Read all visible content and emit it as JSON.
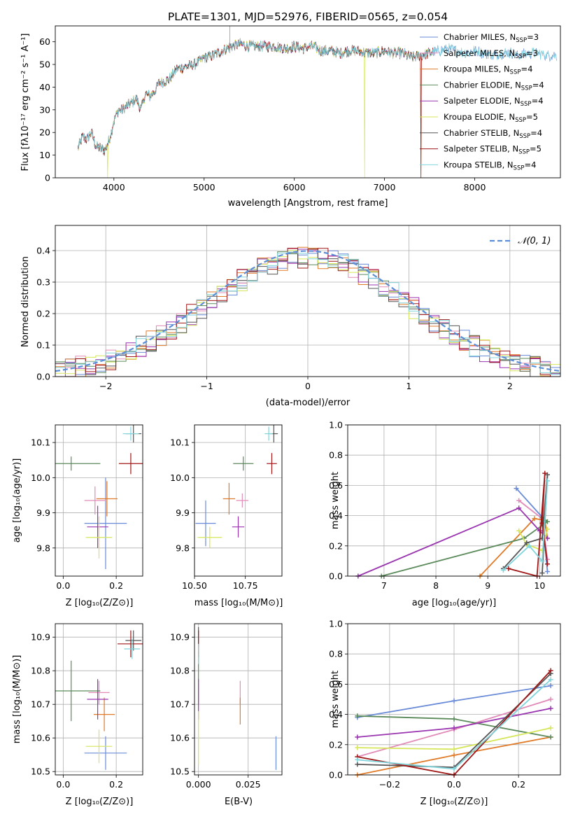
{
  "figure": {
    "title": "PLATE=1301, MJD=52976, FIBERID=0565, z=0.054"
  },
  "models": [
    {
      "name": "Chabrier MILES",
      "nssp": "3",
      "color": "#6a8bd8"
    },
    {
      "name": "Salpeter MILES",
      "nssp": "3",
      "color": "#e28bb8"
    },
    {
      "name": "Kroupa MILES",
      "nssp": "4",
      "color": "#e07b2a"
    },
    {
      "name": "Chabrier ELODIE",
      "nssp": "4",
      "color": "#5b8a5b"
    },
    {
      "name": "Salpeter ELODIE",
      "nssp": "4",
      "color": "#9a35b0"
    },
    {
      "name": "Kroupa ELODIE",
      "nssp": "5",
      "color": "#d6e65a"
    },
    {
      "name": "Chabrier STELIB",
      "nssp": "4",
      "color": "#555555"
    },
    {
      "name": "Salpeter STELIB",
      "nssp": "5",
      "color": "#a01818"
    },
    {
      "name": "Kroupa STELIB",
      "nssp": "4",
      "color": "#80d4dc"
    }
  ],
  "chart_data": [
    {
      "id": "spectrum",
      "type": "line",
      "xlabel": "wavelength [Angstrom, rest frame]",
      "ylabel": "Flux [fλ10⁻¹⁷ erg cm⁻² s⁻¹ A⁻¹]",
      "xlim": [
        3350,
        8950
      ],
      "ylim": [
        0,
        67
      ],
      "xticks": [
        4000,
        5000,
        6000,
        7000,
        8000
      ],
      "yticks": [
        0,
        10,
        20,
        30,
        40,
        50,
        60
      ],
      "grid": false,
      "legend": "right",
      "nssp_label": "N",
      "nssp_sub": "SSP",
      "continuum": {
        "x": [
          3600,
          3650,
          3700,
          3750,
          3800,
          3850,
          3900,
          3950,
          4000,
          4050,
          4100,
          4150,
          4200,
          4250,
          4300,
          4350,
          4400,
          4450,
          4500,
          4600,
          4700,
          4800,
          4900,
          5000,
          5100,
          5200,
          5300,
          5400,
          5500,
          5600,
          5700,
          5800,
          5900,
          6000,
          6100,
          6200,
          6300,
          6400,
          6500,
          6600,
          6700,
          6800,
          6900,
          7000,
          7100,
          7200,
          7300,
          7400,
          7500,
          7600,
          7700,
          7800,
          7900,
          8000,
          8100,
          8200,
          8300,
          8400,
          8500,
          8600,
          8700,
          8800,
          8900
        ],
        "y": [
          13,
          18,
          17,
          20,
          14,
          13,
          12,
          17,
          25,
          30,
          30,
          32,
          33,
          35,
          30,
          37,
          36,
          38,
          42,
          43,
          48,
          49,
          50,
          53,
          54,
          56,
          58,
          59,
          58,
          58,
          58,
          58,
          57,
          58,
          57,
          58,
          56,
          56,
          55,
          56,
          56,
          55,
          55,
          56,
          55,
          55,
          53,
          54,
          55,
          56,
          57,
          56,
          55,
          56,
          55,
          54,
          55,
          55,
          54,
          55,
          55,
          54,
          54
        ]
      }
    },
    {
      "id": "residuals",
      "type": "line",
      "xlabel": "(data-model)/error",
      "ylabel": "Normed distribution",
      "xlim": [
        -2.5,
        2.5
      ],
      "ylim": [
        0,
        0.48
      ],
      "xticks": [
        -2,
        -1,
        0,
        1,
        2
      ],
      "yticks": [
        0.0,
        0.1,
        0.2,
        0.3,
        0.4
      ],
      "grid": true,
      "legend": "top-right",
      "reference_label": "𝒩(0, 1)",
      "bin_width": 0.1
    },
    {
      "id": "age-vs-Z",
      "type": "scatter",
      "xlabel": "Z [log₁₀(Z/Z⊙)]",
      "ylabel": "age  [log₁₀(age/yr)]",
      "xlim": [
        -0.03,
        0.3
      ],
      "ylim": [
        9.72,
        10.15
      ],
      "xticks": [
        0.0,
        0.2
      ],
      "yticks": [
        9.8,
        9.9,
        10.0,
        10.1
      ],
      "grid": true,
      "points": [
        {
          "x": 0.16,
          "y": 9.87,
          "xerr": 0.08,
          "yerr": 0.13
        },
        {
          "x": 0.12,
          "y": 9.935,
          "xerr": 0.04,
          "yerr": 0.04
        },
        {
          "x": 0.165,
          "y": 9.94,
          "xerr": 0.04,
          "yerr": 0.05
        },
        {
          "x": 0.03,
          "y": 10.04,
          "xerr": 0.11,
          "yerr": 0.02
        },
        {
          "x": 0.13,
          "y": 9.86,
          "xerr": 0.04,
          "yerr": 0.06
        },
        {
          "x": 0.135,
          "y": 9.83,
          "xerr": 0.05,
          "yerr": 0.06
        },
        {
          "x": 0.265,
          "y": 10.125,
          "xerr": 0.03,
          "yerr": 0.025
        },
        {
          "x": 0.255,
          "y": 10.04,
          "xerr": 0.045,
          "yerr": 0.03
        },
        {
          "x": 0.255,
          "y": 10.125,
          "xerr": 0.03,
          "yerr": 0.02
        }
      ]
    },
    {
      "id": "age-vs-mass",
      "type": "scatter",
      "xlabel": "mass [log₁₀(M/M⊙)]",
      "ylabel": "",
      "xlim": [
        10.5,
        10.93
      ],
      "ylim": [
        9.72,
        10.15
      ],
      "xticks": [
        10.5,
        10.75
      ],
      "yticks": [
        9.8,
        9.9,
        10.0,
        10.1
      ],
      "grid": true,
      "points": [
        {
          "x": 10.555,
          "y": 9.87,
          "xerr": 0.05,
          "yerr": 0.065
        },
        {
          "x": 10.735,
          "y": 9.935,
          "xerr": 0.03,
          "yerr": 0.02
        },
        {
          "x": 10.67,
          "y": 9.94,
          "xerr": 0.03,
          "yerr": 0.045
        },
        {
          "x": 10.74,
          "y": 10.04,
          "xerr": 0.05,
          "yerr": 0.02
        },
        {
          "x": 10.715,
          "y": 9.86,
          "xerr": 0.03,
          "yerr": 0.03
        },
        {
          "x": 10.575,
          "y": 9.83,
          "xerr": 0.06,
          "yerr": 0.03
        },
        {
          "x": 10.89,
          "y": 10.125,
          "xerr": 0.02,
          "yerr": 0.025
        },
        {
          "x": 10.88,
          "y": 10.04,
          "xerr": 0.025,
          "yerr": 0.03
        },
        {
          "x": 10.865,
          "y": 10.125,
          "xerr": 0.02,
          "yerr": 0.02
        }
      ]
    },
    {
      "id": "weight-vs-age",
      "type": "line",
      "xlabel": "age  [log₁₀(age/yr)]",
      "ylabel": "mass weight",
      "xlim": [
        6.3,
        10.4
      ],
      "ylim": [
        0,
        1.0
      ],
      "xticks": [
        7,
        8,
        9,
        10
      ],
      "yticks": [
        0.0,
        0.2,
        0.4,
        0.6,
        0.8,
        1.0
      ],
      "grid": true,
      "series": [
        {
          "x": [
            10.15,
            10.05,
            9.55
          ],
          "y": [
            0.03,
            0.39,
            0.58
          ]
        },
        {
          "x": [
            10.15,
            10.05,
            9.6
          ],
          "y": [
            0.11,
            0.38,
            0.5
          ]
        },
        {
          "x": [
            8.85,
            9.9,
            10.1,
            10.15
          ],
          "y": [
            0.0,
            0.38,
            0.37,
            0.25
          ]
        },
        {
          "x": [
            6.95,
            9.7,
            10.15,
            10.05
          ],
          "y": [
            0.0,
            0.25,
            0.36,
            0.39
          ]
        },
        {
          "x": [
            6.5,
            9.6,
            10.0,
            10.15
          ],
          "y": [
            0.0,
            0.45,
            0.3,
            0.25
          ]
        },
        {
          "x": [
            9.6,
            9.75,
            10.05,
            10.15
          ],
          "y": [
            0.3,
            0.21,
            0.17,
            0.31
          ]
        },
        {
          "x": [
            9.3,
            9.75,
            10.05,
            10.15,
            10.05
          ],
          "y": [
            0.05,
            0.22,
            0.25,
            0.67,
            0.02
          ]
        },
        {
          "x": [
            9.4,
            9.95,
            10.1,
            10.05,
            10.15
          ],
          "y": [
            0.05,
            0.0,
            0.68,
            0.35,
            0.08
          ]
        },
        {
          "x": [
            9.3,
            9.8,
            10.05,
            10.15
          ],
          "y": [
            0.04,
            0.2,
            0.1,
            0.63
          ]
        }
      ]
    },
    {
      "id": "mass-vs-Z",
      "type": "scatter",
      "xlabel": "Z [log₁₀(Z/Z⊙)]",
      "ylabel": "mass [log₁₀(M/M⊙)]",
      "xlim": [
        -0.03,
        0.3
      ],
      "ylim": [
        10.49,
        10.94
      ],
      "xticks": [
        0.0,
        0.2
      ],
      "yticks": [
        10.5,
        10.6,
        10.7,
        10.8,
        10.9
      ],
      "grid": true,
      "points": [
        {
          "x": 0.16,
          "y": 10.555,
          "xerr": 0.08,
          "yerr": 0.05
        },
        {
          "x": 0.135,
          "y": 10.735,
          "xerr": 0.04,
          "yerr": 0.035
        },
        {
          "x": 0.155,
          "y": 10.67,
          "xerr": 0.04,
          "yerr": 0.05
        },
        {
          "x": 0.03,
          "y": 10.74,
          "xerr": 0.11,
          "yerr": 0.09
        },
        {
          "x": 0.13,
          "y": 10.715,
          "xerr": 0.04,
          "yerr": 0.06
        },
        {
          "x": 0.135,
          "y": 10.575,
          "xerr": 0.05,
          "yerr": 0.05
        },
        {
          "x": 0.265,
          "y": 10.89,
          "xerr": 0.03,
          "yerr": 0.03
        },
        {
          "x": 0.255,
          "y": 10.88,
          "xerr": 0.05,
          "yerr": 0.04
        },
        {
          "x": 0.26,
          "y": 10.865,
          "xerr": 0.03,
          "yerr": 0.03
        }
      ]
    },
    {
      "id": "mass-vs-ebv",
      "type": "scatter",
      "xlabel": "E(B-V)",
      "ylabel": "",
      "xlim": [
        -0.002,
        0.042
      ],
      "ylim": [
        10.49,
        10.94
      ],
      "xticks": [
        0.0,
        0.025
      ],
      "yticks": [
        10.5,
        10.6,
        10.7,
        10.8,
        10.9
      ],
      "grid": true,
      "points": [
        {
          "x": 0.039,
          "y": 10.555,
          "xerr": 0,
          "yerr": 0.05
        },
        {
          "x": 0.021,
          "y": 10.735,
          "xerr": 0,
          "yerr": 0.035
        },
        {
          "x": 0.021,
          "y": 10.68,
          "xerr": 0,
          "yerr": 0.04
        },
        {
          "x": 0.0,
          "y": 10.78,
          "xerr": 0,
          "yerr": 0.08
        },
        {
          "x": 0.0,
          "y": 10.715,
          "xerr": 0,
          "yerr": 0.06
        },
        {
          "x": 0.0,
          "y": 10.6,
          "xerr": 0,
          "yerr": 0.08
        },
        {
          "x": 0.0,
          "y": 10.9,
          "xerr": 0,
          "yerr": 0.03
        },
        {
          "x": 0.0,
          "y": 10.88,
          "xerr": 0,
          "yerr": 0.04
        },
        {
          "x": 0.0,
          "y": 10.85,
          "xerr": 0,
          "yerr": 0.03
        }
      ]
    },
    {
      "id": "weight-vs-Z",
      "type": "line",
      "xlabel": "Z [log₁₀(Z/Z⊙)]",
      "ylabel": "mass weight",
      "xlim": [
        -0.33,
        0.33
      ],
      "ylim": [
        0,
        1.0
      ],
      "xticks": [
        -0.2,
        0.0,
        0.2
      ],
      "yticks": [
        0.0,
        0.2,
        0.4,
        0.6,
        0.8,
        1.0
      ],
      "grid": true,
      "series": [
        {
          "x": [
            -0.3,
            0.0,
            0.3
          ],
          "y": [
            0.38,
            0.49,
            0.59
          ]
        },
        {
          "x": [
            -0.3,
            0.0,
            0.3
          ],
          "y": [
            0.12,
            0.3,
            0.5
          ]
        },
        {
          "x": [
            -0.3,
            0.0,
            0.3
          ],
          "y": [
            0.0,
            0.13,
            0.25
          ]
        },
        {
          "x": [
            -0.3,
            0.0,
            0.3
          ],
          "y": [
            0.39,
            0.37,
            0.25
          ]
        },
        {
          "x": [
            -0.3,
            0.0,
            0.3
          ],
          "y": [
            0.25,
            0.31,
            0.44
          ]
        },
        {
          "x": [
            -0.3,
            0.0,
            0.3
          ],
          "y": [
            0.18,
            0.17,
            0.31
          ]
        },
        {
          "x": [
            -0.3,
            0.0,
            0.3
          ],
          "y": [
            0.07,
            0.05,
            0.67
          ]
        },
        {
          "x": [
            -0.3,
            0.0,
            0.3
          ],
          "y": [
            0.12,
            0.0,
            0.69
          ]
        },
        {
          "x": [
            -0.3,
            0.0,
            0.3
          ],
          "y": [
            0.1,
            0.04,
            0.63
          ]
        }
      ]
    }
  ]
}
